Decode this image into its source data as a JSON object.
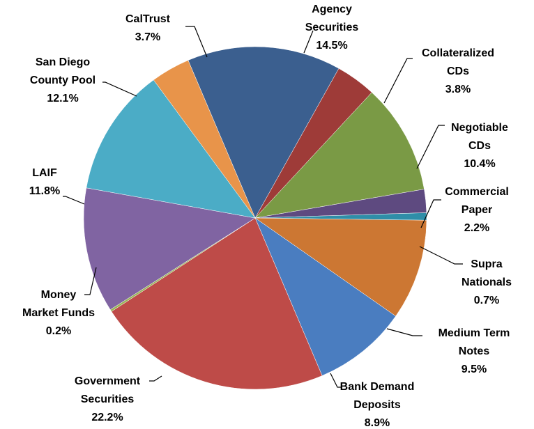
{
  "chart_data": {
    "type": "pie",
    "title": "",
    "start": "Agency Securities at top, clockwise",
    "slices": [
      {
        "name": "Agency Securities",
        "lines": [
          "Agency",
          "Securities",
          "14.5%"
        ],
        "value": 14.5,
        "color": "#3b5f8f"
      },
      {
        "name": "Collateralized CDs",
        "lines": [
          "Collateralized",
          "CDs",
          "3.8%"
        ],
        "value": 3.8,
        "color": "#9e3b38"
      },
      {
        "name": "Negotiable CDs",
        "lines": [
          "Negotiable",
          "CDs",
          "10.4%"
        ],
        "value": 10.4,
        "color": "#7a9a45"
      },
      {
        "name": "Commercial Paper",
        "lines": [
          "Commercial",
          "Paper",
          "2.2%"
        ],
        "value": 2.2,
        "color": "#5e4a80"
      },
      {
        "name": "Supra Nationals",
        "lines": [
          "Supra",
          "Nationals",
          "0.7%"
        ],
        "value": 0.7,
        "color": "#2f8ea8"
      },
      {
        "name": "Medium Term Notes",
        "lines": [
          "Medium Term",
          "Notes",
          "9.5%"
        ],
        "value": 9.5,
        "color": "#cc7733"
      },
      {
        "name": "Bank Demand Deposits",
        "lines": [
          "Bank Demand",
          "Deposits",
          "8.9%"
        ],
        "value": 8.9,
        "color": "#4a7dc0"
      },
      {
        "name": "Government Securities",
        "lines": [
          "Government",
          "Securities",
          "22.2%"
        ],
        "value": 22.2,
        "color": "#be4b48"
      },
      {
        "name": "Money Market Funds",
        "lines": [
          "Money",
          "Market Funds",
          "0.2%"
        ],
        "value": 0.2,
        "color": "#98b356"
      },
      {
        "name": "LAIF",
        "lines": [
          "LAIF",
          "11.8%"
        ],
        "value": 11.8,
        "color": "#8064a2"
      },
      {
        "name": "San Diego County Pool",
        "lines": [
          "San Diego",
          "County Pool",
          "12.1%"
        ],
        "value": 12.1,
        "color": "#4bacc6"
      },
      {
        "name": "CalTrust",
        "lines": [
          "CalTrust",
          "3.7%"
        ],
        "value": 3.7,
        "color": "#e8944a"
      }
    ]
  }
}
